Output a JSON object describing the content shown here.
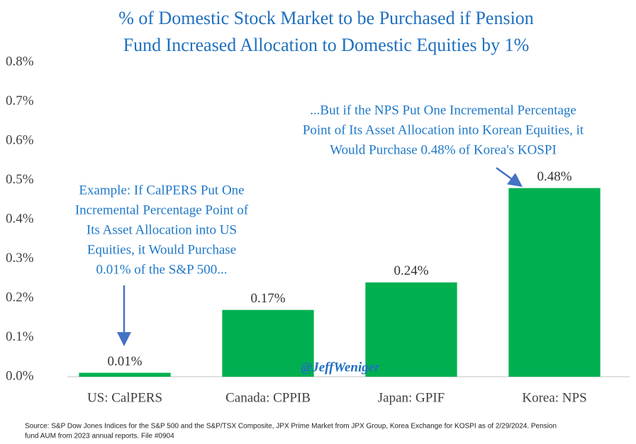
{
  "chart_data": {
    "type": "bar",
    "title": [
      "% of Domestic Stock Market to be Purchased if Pension",
      "Fund Increased Allocation to Domestic Equities by 1%"
    ],
    "categories": [
      "US: CalPERS",
      "Canada: CPPIB",
      "Japan: GPIF",
      "Korea: NPS"
    ],
    "values": [
      0.01,
      0.17,
      0.24,
      0.48
    ],
    "value_labels": [
      "0.01%",
      "0.17%",
      "0.24%",
      "0.48%"
    ],
    "color": "#00b050",
    "ylim": [
      0,
      0.8
    ],
    "yticks": [
      {
        "value": 0,
        "label": "0.0%"
      },
      {
        "value": 0.1,
        "label": "0.1%"
      },
      {
        "value": 0.2,
        "label": "0.2%"
      },
      {
        "value": 0.3,
        "label": "0.3%"
      },
      {
        "value": 0.4,
        "label": "0.4%"
      },
      {
        "value": 0.5,
        "label": "0.5%"
      },
      {
        "value": 0.6,
        "label": "0.6%"
      },
      {
        "value": 0.7,
        "label": "0.7%"
      },
      {
        "value": 0.8,
        "label": "0.8%"
      }
    ],
    "grid": false,
    "annotations": [
      [
        "Example: If CalPERS Put One",
        "Incremental Percentage Point of",
        "Its Asset Allocation into US",
        "Equities, it Would Purchase",
        "0.01% of the S&P 500..."
      ],
      [
        "...But if the NPS Put One Incremental Percentage",
        "Point of Its Asset Allocation into Korean Equities, it",
        "Would Purchase 0.48% of Korea's KOSPI"
      ]
    ],
    "watermark": "@JeffWeniger",
    "source": [
      "Source: S&P Dow Jones Indices for the S&P 500 and the S&P/TSX Composite, JPX Prime Market from JPX Group, Korea Exchange for KOSPI as of 2/29/2024. Pension",
      "fund AUM from 2023 annual reports. File #0904"
    ]
  }
}
